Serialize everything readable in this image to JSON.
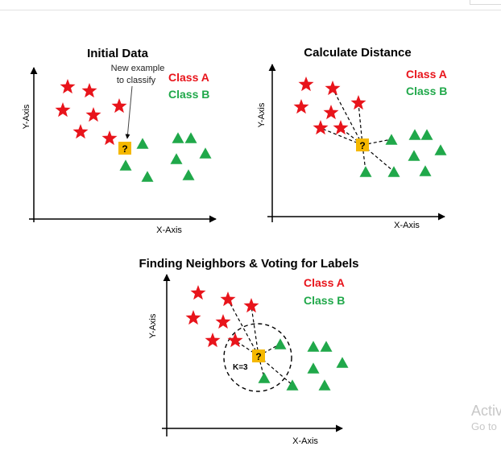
{
  "panels": {
    "initial": {
      "title": "Initial Data",
      "x_axis_label": "X-Axis",
      "y_axis_label": "Y-Axis",
      "legend_a": "Class A",
      "legend_b": "Class B",
      "annotation_line1": "New example",
      "annotation_line2": "to classify",
      "query_mark": "?"
    },
    "distance": {
      "title": "Calculate Distance",
      "x_axis_label": "X-Axis",
      "y_axis_label": "Y-Axis",
      "legend_a": "Class A",
      "legend_b": "Class B",
      "query_mark": "?"
    },
    "voting": {
      "title": "Finding Neighbors & Voting for Labels",
      "x_axis_label": "X-Axis",
      "y_axis_label": "Y-Axis",
      "legend_a": "Class A",
      "legend_b": "Class B",
      "k_label": "K=3",
      "query_mark": "?"
    }
  },
  "colors": {
    "class_a": "#e8141b",
    "class_b": "#20a84a",
    "query": "#f5b800"
  },
  "watermark": {
    "line1": "Activ",
    "line2": "Go to"
  }
}
